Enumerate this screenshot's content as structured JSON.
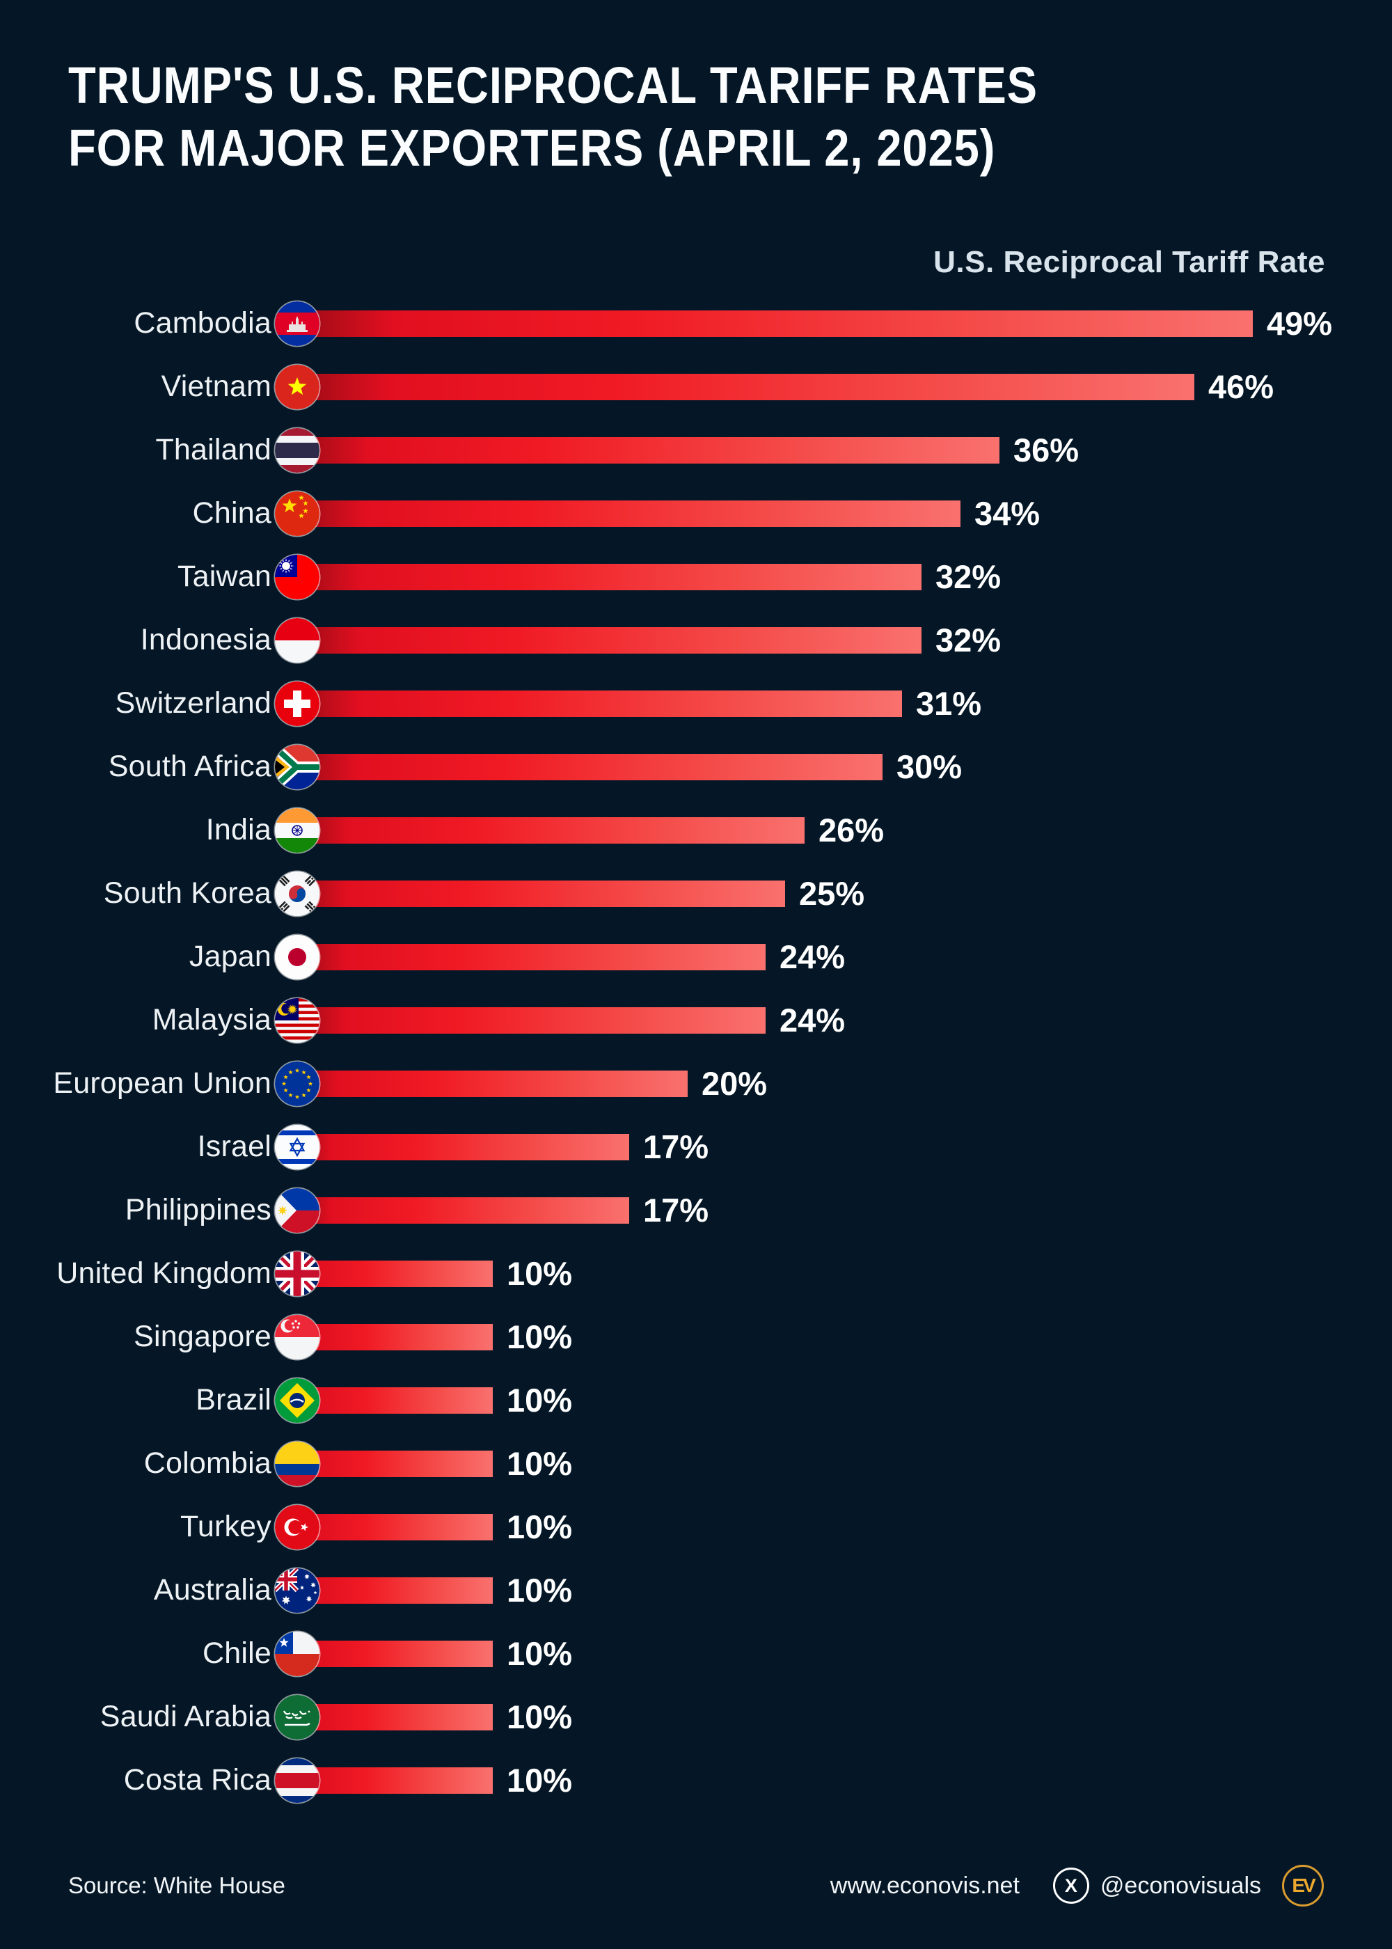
{
  "title": {
    "line1": "TRUMP'S U.S. RECIPROCAL TARIFF RATES",
    "line2": "FOR MAJOR EXPORTERS (APRIL 2, 2025)"
  },
  "chart_header": "U.S. Reciprocal Tariff Rate",
  "chart_data": {
    "type": "bar",
    "orientation": "horizontal",
    "title": "Trump's U.S. Reciprocal Tariff Rates for Major Exporters (April 2, 2025)",
    "value_axis_label": "U.S. Reciprocal Tariff Rate",
    "unit": "%",
    "value_range": [
      0,
      50
    ],
    "sorted": "descending",
    "grid": "off",
    "categories": [
      "Cambodia",
      "Vietnam",
      "Thailand",
      "China",
      "Taiwan",
      "Indonesia",
      "Switzerland",
      "South Africa",
      "India",
      "South Korea",
      "Japan",
      "Malaysia",
      "European Union",
      "Israel",
      "Philippines",
      "United Kingdom",
      "Singapore",
      "Brazil",
      "Colombia",
      "Turkey",
      "Australia",
      "Chile",
      "Saudi Arabia",
      "Costa Rica"
    ],
    "values": [
      49,
      46,
      36,
      34,
      32,
      32,
      31,
      30,
      26,
      25,
      24,
      24,
      20,
      17,
      17,
      10,
      10,
      10,
      10,
      10,
      10,
      10,
      10,
      10
    ],
    "value_labels": [
      "49%",
      "46%",
      "36%",
      "34%",
      "32%",
      "32%",
      "31%",
      "30%",
      "26%",
      "25%",
      "24%",
      "24%",
      "20%",
      "17%",
      "17%",
      "10%",
      "10%",
      "10%",
      "10%",
      "10%",
      "10%",
      "10%",
      "10%",
      "10%"
    ],
    "flag_keys": [
      "kh",
      "vn",
      "th",
      "cn",
      "tw",
      "id",
      "ch",
      "za",
      "in",
      "kr",
      "jp",
      "my",
      "eu",
      "il",
      "ph",
      "gb",
      "sg",
      "br",
      "co",
      "tr",
      "au",
      "cl",
      "sa",
      "cr"
    ],
    "bar_gradient": [
      "#9d0b16",
      "#f01a24",
      "#f9716e"
    ]
  },
  "footer": {
    "source": "Source: White House",
    "website": "www.econovis.net",
    "x_icon": "X",
    "social_handle": "@econovisuals",
    "logo_text": "EV"
  },
  "colors": {
    "background": "#051726",
    "title_text": "#fbfcfd",
    "label_text": "#eef2f5",
    "header_text": "#d9e3ec",
    "value_text": "#ffffff",
    "accent_gold": "#eca82f"
  }
}
